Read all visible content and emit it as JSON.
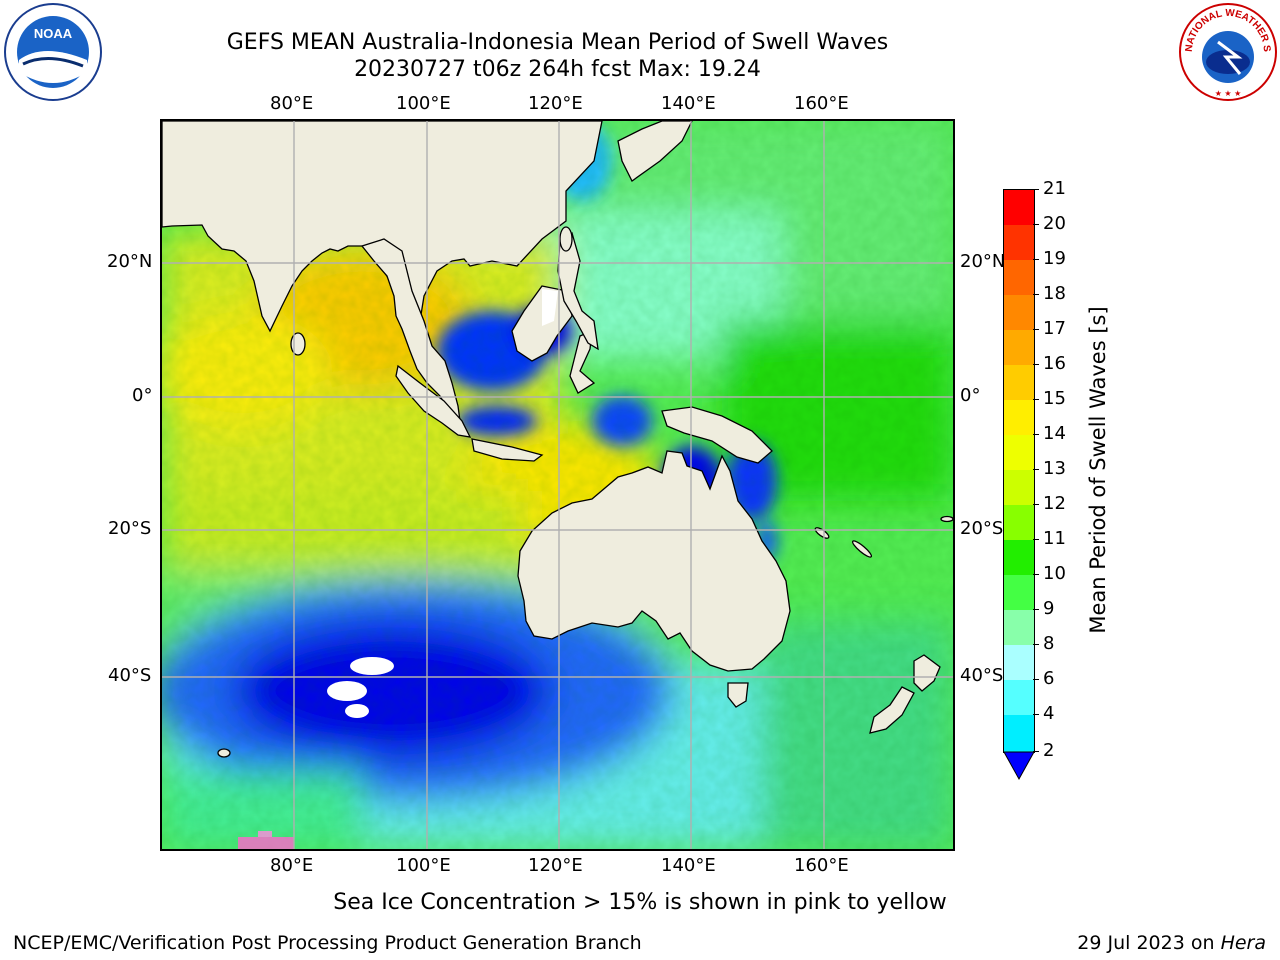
{
  "title": {
    "line1": "GEFS MEAN Australia-Indonesia Mean Period of Swell Waves",
    "line2": "20230727 t06z 264h fcst   Max: 19.24"
  },
  "map": {
    "lon_ticks": [
      "80°E",
      "100°E",
      "120°E",
      "140°E",
      "160°E"
    ],
    "lat_ticks": [
      "20°N",
      "0°",
      "20°S",
      "40°S"
    ],
    "gridlines": true,
    "colors": {
      "land": "#efedde",
      "coast": "#000000",
      "grid": "#b0b0b0"
    }
  },
  "colorbar": {
    "label": "Mean Period of Swell Waves [s]",
    "ticks": [
      "21",
      "20",
      "19",
      "18",
      "17",
      "16",
      "15",
      "14",
      "13",
      "12",
      "11",
      "10",
      "9",
      "8",
      "6",
      "4",
      "2"
    ],
    "colors": [
      "#ff0000",
      "#ff3300",
      "#ff6600",
      "#ff8800",
      "#ffaa00",
      "#ffcc00",
      "#ffee00",
      "#eeff00",
      "#ccff00",
      "#88ff00",
      "#22ee00",
      "#44ff44",
      "#88ffaa",
      "#aaffff",
      "#55ffff",
      "#00eeff",
      "#0077ff"
    ],
    "extend_color": "#0000ff"
  },
  "note": "Sea Ice Concentration > 15% is shown in pink to yellow",
  "footer": {
    "left": "NCEP/EMC/Verification Post Processing Product Generation Branch",
    "date": "29 Jul 2023 on ",
    "machine": "Hera"
  },
  "logos": {
    "noaa_text": "NOAA",
    "nws_text": "NATIONAL WEATHER SERVICE"
  }
}
